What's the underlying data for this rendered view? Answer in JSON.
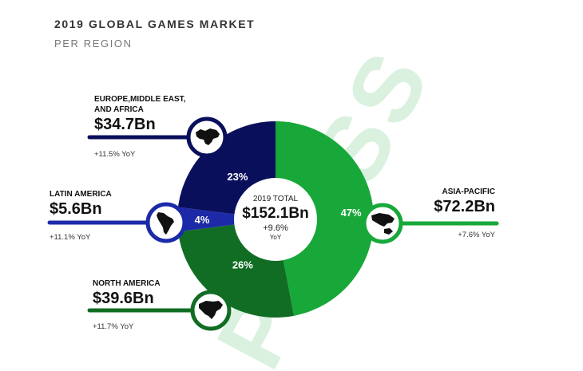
{
  "header": {
    "title": "2019 GLOBAL GAMES MARKET",
    "subtitle": "PER REGION"
  },
  "watermark": "PRESS",
  "colors": {
    "emea": "#0a0f5c",
    "latam": "#1c2aa8",
    "north_america": "#116d24",
    "asia_pacific": "#17a839",
    "watermark": "#d9f1de"
  },
  "center": {
    "title": "2019 TOTAL",
    "value": "$152.1Bn",
    "growth": "+9.6%",
    "unit": "YoY"
  },
  "regions": {
    "emea": {
      "name": "EUROPE,MIDDLE EAST, AND AFRICA",
      "value": "$34.7Bn",
      "yoy": "+11.5% YoY",
      "icon": "europe-africa-map-icon"
    },
    "latam": {
      "name": "LATIN AMERICA",
      "value": "$5.6Bn",
      "yoy": "+11.1% YoY",
      "icon": "south-america-map-icon"
    },
    "north_america": {
      "name": "NORTH AMERICA",
      "value": "$39.6Bn",
      "yoy": "+11.7% YoY",
      "icon": "north-america-map-icon"
    },
    "asia_pacific": {
      "name": "ASIA-PACIFIC",
      "value": "$72.2Bn",
      "yoy": "+7.6% YoY",
      "icon": "asia-pacific-map-icon"
    }
  },
  "chart_data": {
    "type": "pie",
    "categories": [
      "ASIA-PACIFIC",
      "NORTH AMERICA",
      "LATIN AMERICA",
      "EUROPE,MIDDLE EAST, AND AFRICA"
    ],
    "values": [
      47,
      26,
      4,
      23
    ],
    "labels": [
      "47%",
      "26%",
      "4%",
      "23%"
    ],
    "amounts": [
      72.2,
      39.6,
      5.6,
      34.7
    ],
    "colors": [
      "#17a839",
      "#116d24",
      "#1c2aa8",
      "#0a0f5c"
    ],
    "title": "2019 GLOBAL GAMES MARKET",
    "subtitle": "PER REGION",
    "total": "$152.1Bn"
  }
}
